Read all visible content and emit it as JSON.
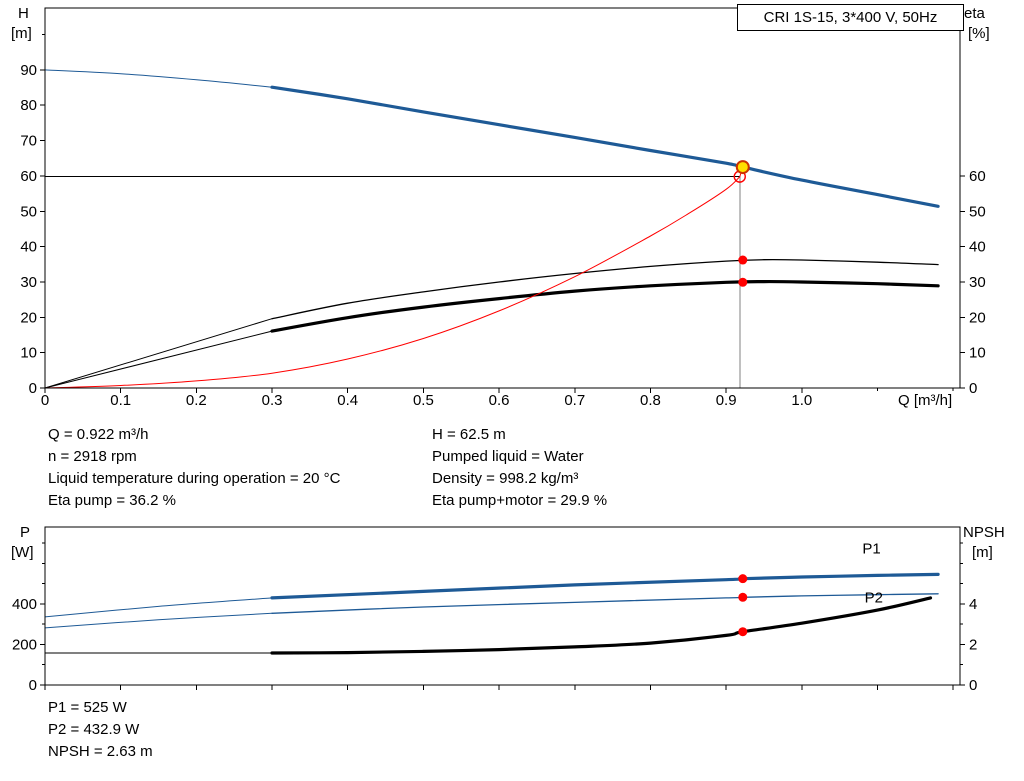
{
  "colors": {
    "curve_blue": "#1e5a96",
    "curve_black": "#000000",
    "curve_red": "#ff0000",
    "duty_fill": "#ffdf00",
    "duty_ring": "#cc3300",
    "marker_red": "#ff0000",
    "guide_gray": "#808080",
    "frame": "#000000"
  },
  "axes_labels": {
    "top_left_1": "H",
    "top_left_2": "[m]",
    "top_right_1": "eta",
    "top_right_2": "[%]",
    "x_title": "Q [m³/h]",
    "bottom_left_1": "P",
    "bottom_left_2": "[W]",
    "bottom_right_1": "NPSH",
    "bottom_right_2": "[m]"
  },
  "annotations": {
    "top_left": [
      "Q = 0.922 m³/h",
      "n = 2918 rpm",
      "Liquid temperature during operation = 20 °C",
      "Eta pump = 36.2 %"
    ],
    "top_right": [
      "H = 62.5 m",
      "Pumped liquid = Water",
      "Density = 998.2 kg/m³",
      "Eta pump+motor = 29.9 %"
    ],
    "bottom": [
      "P1 = 525 W",
      "P2 = 432.9 W",
      "NPSH = 2.63 m"
    ]
  },
  "chart_data": [
    {
      "type": "line",
      "title": "CRI 1S-15, 3*400 V, 50Hz",
      "xlabel": "Q [m³/h]",
      "ylabel_left": "H [m]",
      "ylabel_right": "eta [%]",
      "x_axis": {
        "lim": [
          0,
          1.209
        ],
        "ticks": [
          0,
          0.1,
          0.2,
          0.3,
          0.4,
          0.5,
          0.6,
          0.7,
          0.8,
          0.9,
          1.0
        ],
        "tick_labels": [
          "0",
          "0.1",
          "0.2",
          "0.3",
          "0.4",
          "0.5",
          "0.6",
          "0.7",
          "0.8",
          "0.9",
          "1.0"
        ],
        "minor": [
          1.1,
          1.2
        ]
      },
      "y_left": {
        "lim": [
          0,
          107.5
        ],
        "ticks": [
          0,
          10,
          20,
          30,
          40,
          50,
          60,
          70,
          80,
          90
        ],
        "tick_labels": [
          "0",
          "10",
          "20",
          "30",
          "40",
          "50",
          "60",
          "70",
          "80",
          "90"
        ],
        "minor": [
          100
        ]
      },
      "y_right": {
        "lim": [
          0,
          107.5
        ],
        "ticks": [
          0,
          10,
          20,
          30,
          40,
          50,
          60
        ],
        "tick_labels": [
          "0",
          "10",
          "20",
          "30",
          "40",
          "50",
          "60"
        ],
        "minor": []
      },
      "guides": [
        {
          "dir": "h",
          "at": 59.8,
          "from": 0,
          "to": 0.918,
          "color_key": "curve_black",
          "width": 1
        },
        {
          "dir": "v",
          "at": 0.918,
          "from": 0,
          "to": 59.8,
          "color_key": "guide_gray",
          "width": 1
        }
      ],
      "series": [
        {
          "name": "H-curve-leadin",
          "axis": "left",
          "color_key": "curve_blue",
          "width": 1,
          "smooth": true,
          "points": [
            [
              0,
              90
            ],
            [
              0.1,
              88.9
            ],
            [
              0.2,
              87.2
            ],
            [
              0.3,
              85.1
            ]
          ]
        },
        {
          "name": "H-curve",
          "axis": "left",
          "color_key": "curve_blue",
          "width": 3.2,
          "smooth": true,
          "points": [
            [
              0.3,
              85.1
            ],
            [
              0.4,
              81.8
            ],
            [
              0.5,
              78.1
            ],
            [
              0.6,
              74.5
            ],
            [
              0.7,
              70.9
            ],
            [
              0.8,
              67.2
            ],
            [
              0.9,
              63.6
            ],
            [
              0.922,
              62.5
            ],
            [
              1.0,
              58.8
            ],
            [
              1.1,
              54.7
            ],
            [
              1.18,
              51.4
            ]
          ]
        },
        {
          "name": "eta-pump-leadin",
          "axis": "left",
          "color_key": "curve_black",
          "width": 1,
          "smooth": false,
          "points": [
            [
              0,
              0
            ],
            [
              0.3,
              19.6
            ]
          ]
        },
        {
          "name": "eta-pump",
          "axis": "left",
          "color_key": "curve_black",
          "width": 1.3,
          "smooth": true,
          "points": [
            [
              0.3,
              19.6
            ],
            [
              0.4,
              24.0
            ],
            [
              0.5,
              27.2
            ],
            [
              0.6,
              30.0
            ],
            [
              0.7,
              32.4
            ],
            [
              0.8,
              34.4
            ],
            [
              0.9,
              35.9
            ],
            [
              0.95,
              36.3
            ],
            [
              1.0,
              36.2
            ],
            [
              1.1,
              35.6
            ],
            [
              1.18,
              34.9
            ]
          ]
        },
        {
          "name": "eta-pump-motor-leadin",
          "axis": "left",
          "color_key": "curve_black",
          "width": 1,
          "smooth": false,
          "points": [
            [
              0,
              0
            ],
            [
              0.3,
              16.1
            ]
          ]
        },
        {
          "name": "eta-pump-motor",
          "axis": "left",
          "color_key": "curve_black",
          "width": 3.2,
          "smooth": true,
          "points": [
            [
              0.3,
              16.1
            ],
            [
              0.4,
              19.9
            ],
            [
              0.5,
              22.9
            ],
            [
              0.6,
              25.3
            ],
            [
              0.7,
              27.4
            ],
            [
              0.8,
              28.9
            ],
            [
              0.9,
              29.9
            ],
            [
              0.95,
              30.1
            ],
            [
              1.0,
              30.0
            ],
            [
              1.1,
              29.5
            ],
            [
              1.18,
              28.9
            ]
          ]
        },
        {
          "name": "system-curve",
          "axis": "left",
          "color_key": "curve_red",
          "width": 1,
          "smooth": true,
          "points": [
            [
              0,
              0
            ],
            [
              0.1,
              0.7
            ],
            [
              0.2,
              2.0
            ],
            [
              0.3,
              4.2
            ],
            [
              0.4,
              8.2
            ],
            [
              0.5,
              14.0
            ],
            [
              0.6,
              21.8
            ],
            [
              0.7,
              31.5
            ],
            [
              0.8,
              43.0
            ],
            [
              0.85,
              49.3
            ],
            [
              0.9,
              56.2
            ],
            [
              0.918,
              59.8
            ]
          ]
        },
        {
          "name": "duty-connector",
          "axis": "left",
          "color_key": "curve_red",
          "width": 1,
          "smooth": false,
          "points": [
            [
              0.918,
              59.8
            ],
            [
              0.922,
              62.5
            ]
          ]
        }
      ],
      "markers": [
        {
          "name": "duty-point-requested",
          "x": 0.918,
          "y": 59.8,
          "axis": "left",
          "r": 5.5,
          "fill": "none",
          "stroke_key": "curve_red",
          "stroke_width": 1.4
        },
        {
          "name": "operating-point",
          "x": 0.922,
          "y": 62.5,
          "axis": "left",
          "r": 6,
          "fill_key": "duty_fill",
          "stroke_key": "duty_ring",
          "stroke_width": 2
        },
        {
          "name": "eta-pump-point",
          "x": 0.922,
          "y": 36.2,
          "axis": "left",
          "r": 4.5,
          "fill_key": "marker_red",
          "stroke_width": 0
        },
        {
          "name": "eta-pump-motor-point",
          "x": 0.922,
          "y": 29.9,
          "axis": "left",
          "r": 4.5,
          "fill_key": "marker_red",
          "stroke_width": 0
        }
      ],
      "labels": []
    },
    {
      "type": "line",
      "title": "",
      "xlabel": "",
      "ylabel_left": "P [W]",
      "ylabel_right": "NPSH [m]",
      "x_axis": {
        "lim": [
          0,
          1.209
        ],
        "ticks": [
          0,
          0.1,
          0.2,
          0.3,
          0.4,
          0.5,
          0.6,
          0.7,
          0.8,
          0.9,
          1.0,
          1.1,
          1.2
        ],
        "tick_labels": [],
        "minor": []
      },
      "y_left": {
        "lim": [
          0,
          780
        ],
        "ticks": [
          0,
          200,
          400
        ],
        "tick_labels": [
          "0",
          "200",
          "400"
        ],
        "minor": [
          100,
          300,
          500,
          600,
          700
        ]
      },
      "y_right": {
        "lim": [
          0,
          7.8
        ],
        "ticks": [
          0,
          2,
          4
        ],
        "tick_labels": [
          "0",
          "2",
          "4"
        ],
        "minor": [
          1,
          3,
          5,
          6,
          7
        ]
      },
      "guides": [],
      "series": [
        {
          "name": "P1-leadin",
          "axis": "left",
          "color_key": "curve_blue",
          "width": 1,
          "smooth": true,
          "points": [
            [
              0,
              336
            ],
            [
              0.15,
              388
            ],
            [
              0.3,
              430
            ]
          ]
        },
        {
          "name": "P1",
          "axis": "left",
          "color_key": "curve_blue",
          "width": 3.2,
          "smooth": true,
          "points": [
            [
              0.3,
              430
            ],
            [
              0.5,
              462
            ],
            [
              0.7,
              494
            ],
            [
              0.9,
              520
            ],
            [
              0.922,
              525
            ],
            [
              1.0,
              533
            ],
            [
              1.1,
              541
            ],
            [
              1.18,
              546
            ]
          ]
        },
        {
          "name": "P2-leadin",
          "axis": "left",
          "color_key": "curve_blue",
          "width": 1,
          "smooth": true,
          "points": [
            [
              0,
              282
            ],
            [
              0.15,
              322
            ],
            [
              0.3,
              354
            ]
          ]
        },
        {
          "name": "P2",
          "axis": "left",
          "color_key": "curve_blue",
          "width": 1.3,
          "smooth": true,
          "points": [
            [
              0.3,
              354
            ],
            [
              0.5,
              385
            ],
            [
              0.7,
              408
            ],
            [
              0.9,
              430
            ],
            [
              0.922,
              433
            ],
            [
              1.0,
              440
            ],
            [
              1.1,
              446
            ],
            [
              1.18,
              450
            ]
          ]
        },
        {
          "name": "NPSH-leadin",
          "axis": "right",
          "color_key": "curve_black",
          "width": 1,
          "smooth": false,
          "points": [
            [
              0,
              1.58
            ],
            [
              0.3,
              1.58
            ]
          ]
        },
        {
          "name": "NPSH",
          "axis": "right",
          "color_key": "curve_black",
          "width": 3.2,
          "smooth": true,
          "points": [
            [
              0.3,
              1.58
            ],
            [
              0.4,
              1.6
            ],
            [
              0.5,
              1.66
            ],
            [
              0.6,
              1.75
            ],
            [
              0.7,
              1.88
            ],
            [
              0.8,
              2.07
            ],
            [
              0.9,
              2.45
            ],
            [
              0.922,
              2.63
            ],
            [
              1.0,
              3.05
            ],
            [
              1.1,
              3.7
            ],
            [
              1.17,
              4.3
            ]
          ]
        }
      ],
      "markers": [
        {
          "name": "p1-point",
          "x": 0.922,
          "y": 525,
          "axis": "left",
          "r": 4.5,
          "fill_key": "marker_red",
          "stroke_width": 0
        },
        {
          "name": "p2-point",
          "x": 0.922,
          "y": 433,
          "axis": "left",
          "r": 4.5,
          "fill_key": "marker_red",
          "stroke_width": 0
        },
        {
          "name": "npsh-point",
          "x": 0.922,
          "y": 2.63,
          "axis": "right",
          "r": 4.5,
          "fill_key": "marker_red",
          "stroke_width": 0
        }
      ],
      "labels": [
        {
          "name": "p1-label",
          "text": "P1",
          "x": 1.08,
          "y": 650,
          "axis": "left",
          "color_key": "curve_blue"
        },
        {
          "name": "p2-label",
          "text": "P2",
          "x": 1.083,
          "y": 408,
          "axis": "left",
          "color_key": "curve_blue"
        }
      ]
    }
  ]
}
